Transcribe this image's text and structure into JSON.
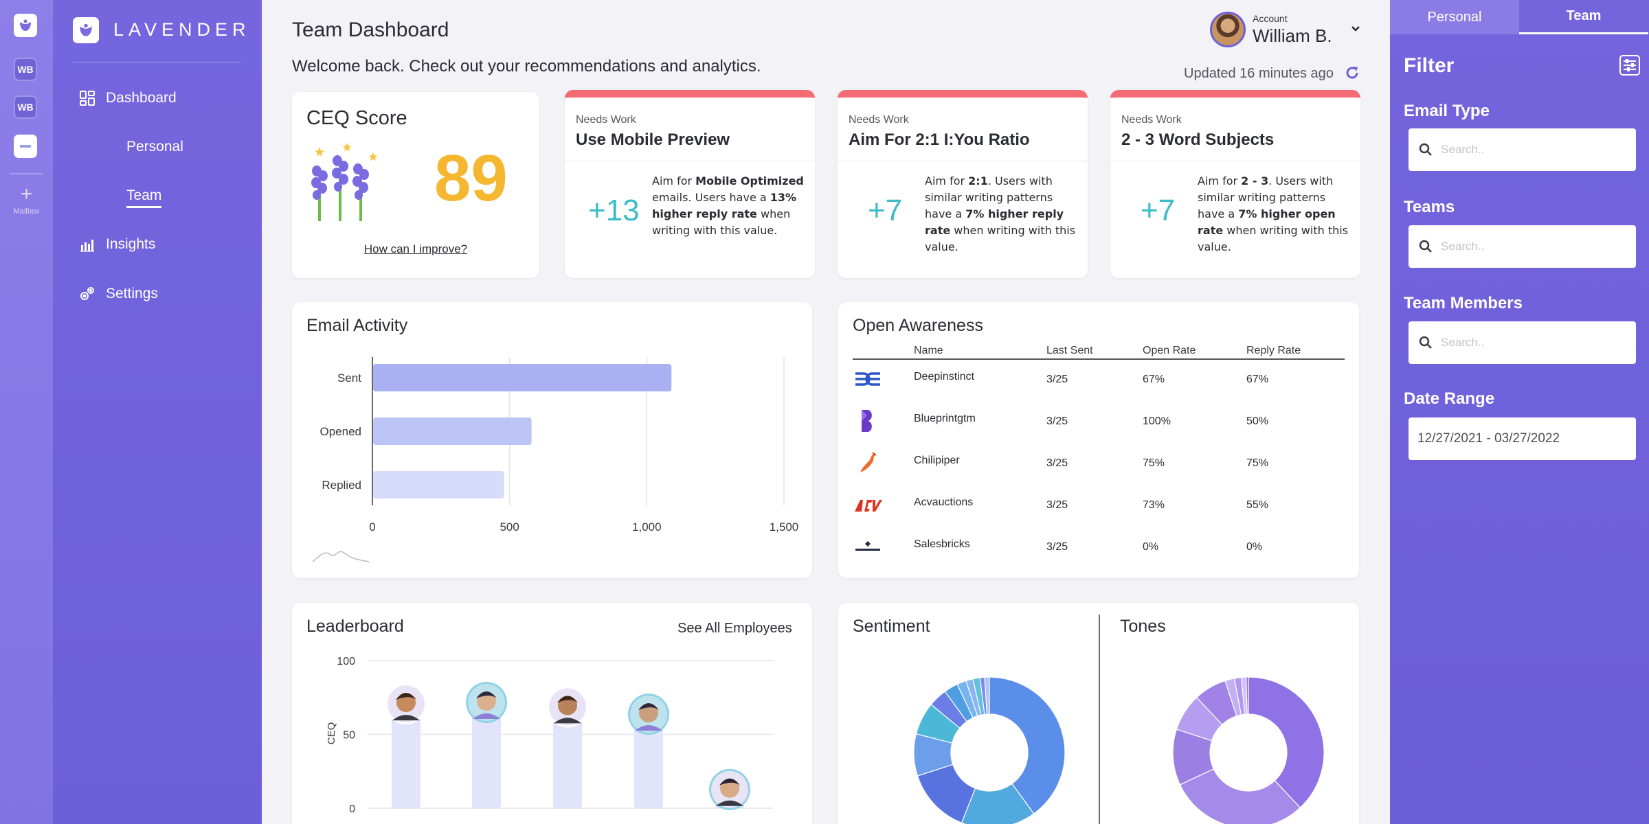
{
  "rail": {
    "wb1": "WB",
    "wb2": "WB",
    "plus": "+",
    "mailbox": "Mailbox"
  },
  "sidebar": {
    "logo": "LAVENDER",
    "dashboard": "Dashboard",
    "personal": "Personal",
    "team": "Team",
    "insights": "Insights",
    "settings": "Settings"
  },
  "header": {
    "title": "Team Dashboard",
    "welcome": "Welcome back. Check out your recommendations and analytics.",
    "account_label": "Account",
    "account_name": "William B.",
    "updated": "Updated 16 minutes ago"
  },
  "ceq": {
    "title": "CEQ Score",
    "value": "89",
    "link": "How can I improve?"
  },
  "recommendations": [
    {
      "status": "Needs Work",
      "title": "Use Mobile Preview",
      "delta": "+13"
    },
    {
      "status": "Needs Work",
      "title": "Aim For 2:1 I:You Ratio",
      "delta": "+7"
    },
    {
      "status": "Needs Work",
      "title": "2 - 3 Word Subjects",
      "delta": "+7"
    }
  ],
  "email_activity": {
    "title": "Email Activity"
  },
  "chart_data": [
    {
      "type": "bar",
      "title": "Email Activity",
      "orientation": "horizontal",
      "categories": [
        "Sent",
        "Opened",
        "Replied"
      ],
      "values": [
        1090,
        580,
        480
      ],
      "xlim": [
        0,
        1500
      ],
      "xticks": [
        "0",
        "500",
        "1,000",
        "1,500"
      ],
      "colors": [
        "#a9b1f2",
        "#bcc4f5",
        "#d6dbfa"
      ]
    },
    {
      "type": "bar",
      "title": "Leaderboard",
      "ylabel": "CEQ",
      "ylim": [
        0,
        100
      ],
      "yticks": [
        "0",
        "50",
        "100"
      ],
      "values": [
        66,
        67,
        64,
        59,
        8
      ],
      "color": "#e1e4fb"
    },
    {
      "type": "pie",
      "title": "Sentiment",
      "donut": true,
      "values": [
        40,
        16,
        14,
        9,
        7,
        4,
        3,
        2,
        1.5,
        1.5,
        1,
        1
      ],
      "colors": [
        "#5b8ee8",
        "#52a9e0",
        "#5872e0",
        "#6c9ee9",
        "#4cb8d8",
        "#6a7ee6",
        "#4e9fe2",
        "#76b3ef",
        "#8bb4f0",
        "#62c2dd",
        "#7d8bea",
        "#a8c6f3"
      ]
    },
    {
      "type": "pie",
      "title": "Tones",
      "donut": true,
      "values": [
        38,
        30,
        12,
        8,
        7,
        2,
        1.5,
        1,
        0.5
      ],
      "colors": [
        "#8f73e6",
        "#a58ae9",
        "#9b7fe3",
        "#b59ef0",
        "#a182e6",
        "#c3b0f3",
        "#b197ee",
        "#d0c0f5",
        "#8e70e0"
      ]
    }
  ],
  "open_awareness": {
    "title": "Open Awareness",
    "columns": [
      "Name",
      "Last Sent",
      "Open Rate",
      "Reply Rate"
    ],
    "rows": [
      {
        "name": "Deepinstinct",
        "last_sent": "3/25",
        "open_rate": "67%",
        "reply_rate": "67%",
        "logo": "deepinstinct-logo"
      },
      {
        "name": "Blueprintgtm",
        "last_sent": "3/25",
        "open_rate": "100%",
        "reply_rate": "50%",
        "logo": "blueprintgtm-logo"
      },
      {
        "name": "Chilipiper",
        "last_sent": "3/25",
        "open_rate": "75%",
        "reply_rate": "75%",
        "logo": "chilipiper-logo"
      },
      {
        "name": "Acvauctions",
        "last_sent": "3/25",
        "open_rate": "73%",
        "reply_rate": "55%",
        "logo": "acvauctions-logo"
      },
      {
        "name": "Salesbricks",
        "last_sent": "3/25",
        "open_rate": "0%",
        "reply_rate": "0%",
        "logo": "salesbricks-logo"
      }
    ]
  },
  "leaderboard": {
    "title": "Leaderboard",
    "see_all": "See All Employees"
  },
  "sentiment": {
    "title": "Sentiment",
    "tones_title": "Tones"
  },
  "filter": {
    "tab_personal": "Personal",
    "tab_team": "Team",
    "title": "Filter",
    "email_type_label": "Email Type",
    "email_type_placeholder": "Search..",
    "teams_label": "Teams",
    "teams_placeholder": "Search..",
    "members_label": "Team Members",
    "members_placeholder": "Search..",
    "date_label": "Date Range",
    "date_value": "12/27/2021 - 03/27/2022"
  },
  "colors": {
    "accent": "#6d5fd9",
    "score": "#f5b730",
    "needs_work": "#f56b74",
    "delta": "#3cbcc7"
  }
}
